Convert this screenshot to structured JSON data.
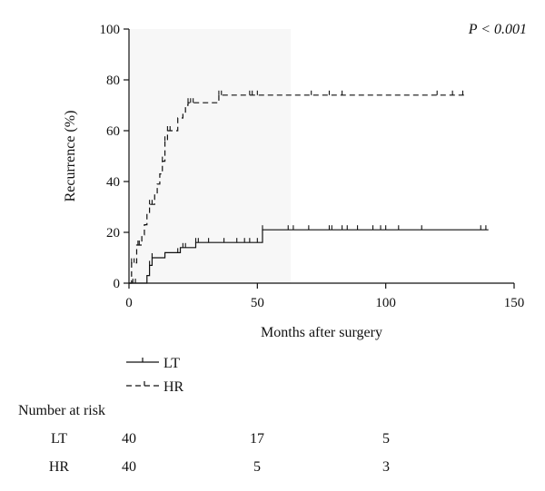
{
  "chart_data": {
    "type": "line",
    "title": "",
    "xlabel": "Months after surgery",
    "ylabel": "Recurrence (%)",
    "xlim": [
      0,
      150
    ],
    "ylim": [
      0,
      100
    ],
    "xticks": [
      0,
      50,
      100,
      150
    ],
    "yticks": [
      0,
      20,
      40,
      60,
      80,
      100
    ],
    "grid": false,
    "annotation": "P < 0.001",
    "legend_position": "below-left",
    "series": [
      {
        "name": "LT",
        "style": "solid",
        "steps": [
          [
            0,
            0
          ],
          [
            7,
            0
          ],
          [
            7,
            3
          ],
          [
            8,
            3
          ],
          [
            8,
            7
          ],
          [
            9,
            7
          ],
          [
            9,
            10
          ],
          [
            14,
            10
          ],
          [
            14,
            12
          ],
          [
            20,
            12
          ],
          [
            20,
            14
          ],
          [
            26,
            14
          ],
          [
            26,
            16
          ],
          [
            52,
            16
          ],
          [
            52,
            21
          ],
          [
            140,
            21
          ]
        ],
        "censor_x": [
          1.5,
          2.5,
          8,
          9,
          19,
          21,
          22,
          26,
          27,
          31,
          37,
          42,
          45,
          47,
          50,
          52,
          62,
          64,
          70,
          78,
          79,
          83,
          85,
          89,
          95,
          98,
          100,
          105,
          114,
          137,
          139
        ]
      },
      {
        "name": "HR",
        "style": "dashed",
        "steps": [
          [
            0,
            0
          ],
          [
            1,
            0
          ],
          [
            1,
            8
          ],
          [
            3,
            8
          ],
          [
            3,
            15
          ],
          [
            5,
            15
          ],
          [
            5,
            19
          ],
          [
            6,
            19
          ],
          [
            6,
            23
          ],
          [
            7,
            23
          ],
          [
            7,
            27
          ],
          [
            8,
            27
          ],
          [
            8,
            31
          ],
          [
            10,
            31
          ],
          [
            10,
            35
          ],
          [
            11,
            35
          ],
          [
            11,
            39
          ],
          [
            12,
            39
          ],
          [
            12,
            43
          ],
          [
            13,
            43
          ],
          [
            13,
            48
          ],
          [
            14,
            48
          ],
          [
            14,
            56
          ],
          [
            15,
            56
          ],
          [
            15,
            60
          ],
          [
            19,
            60
          ],
          [
            19,
            65
          ],
          [
            21,
            65
          ],
          [
            21,
            67
          ],
          [
            22,
            67
          ],
          [
            22,
            70
          ],
          [
            23,
            70
          ],
          [
            23,
            71
          ],
          [
            35,
            71
          ],
          [
            35,
            74
          ],
          [
            131,
            74
          ]
        ],
        "censor_x": [
          1,
          2,
          3.5,
          4,
          8,
          9,
          13,
          14,
          15,
          16,
          23,
          24,
          25,
          35,
          36,
          47,
          48,
          50,
          71,
          78,
          83,
          120,
          126,
          130
        ]
      }
    ]
  },
  "risk_table": {
    "title": "Number at risk",
    "time_points": [
      0,
      50,
      100
    ],
    "rows": [
      {
        "label": "LT",
        "values": [
          "40",
          "17",
          "5"
        ]
      },
      {
        "label": "HR",
        "values": [
          "40",
          "5",
          "3"
        ]
      }
    ]
  }
}
